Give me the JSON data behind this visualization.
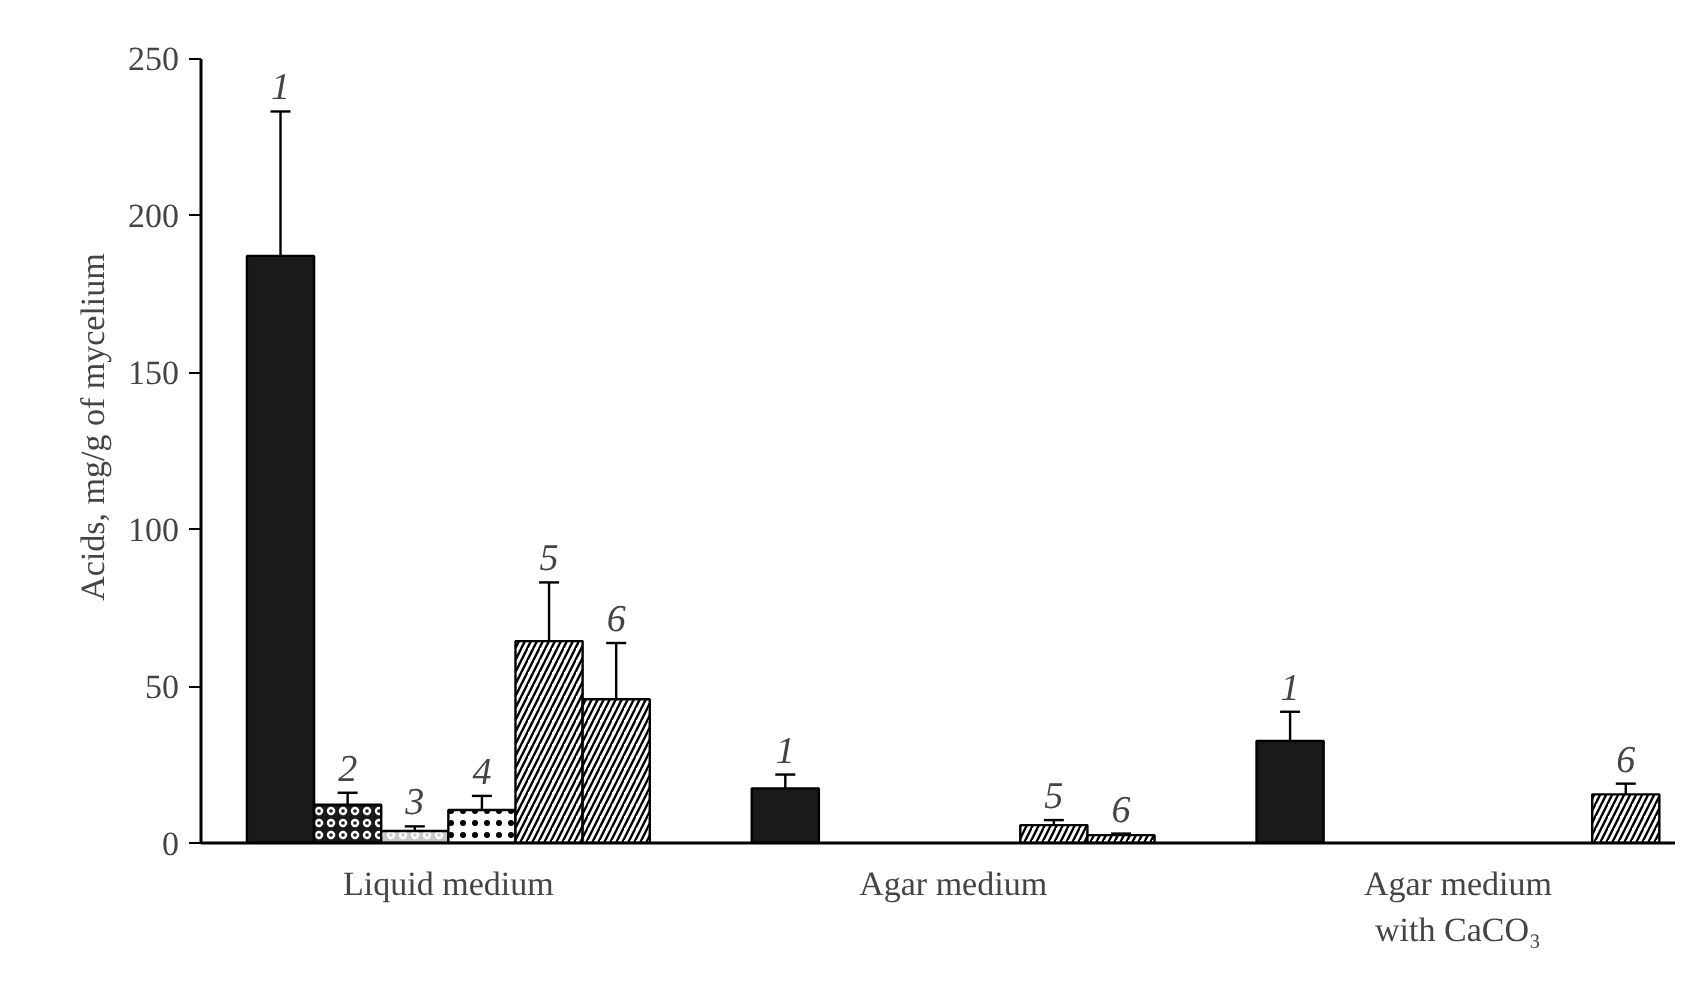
{
  "chart_data": {
    "type": "bar",
    "ylabel": "Acids, mg/g of mycelium",
    "categories": [
      "Liquid medium",
      "Agar medium",
      "Agar medium with CaCO₃"
    ],
    "series": [
      {
        "name": "1",
        "color": "#1a1a1a",
        "values": [
          187,
          17.4,
          32.5
        ],
        "errors": [
          46,
          4.4,
          9.3
        ]
      },
      {
        "name": "2",
        "color": "#1a1a1a",
        "values": [
          12.2,
          null,
          null
        ],
        "errors": [
          3.8,
          null,
          null
        ]
      },
      {
        "name": "3",
        "color": "#c8c8c8",
        "values": [
          3.8,
          null,
          null
        ],
        "errors": [
          1.5,
          null,
          null
        ]
      },
      {
        "name": "4",
        "color": "#ffffff",
        "values": [
          10.5,
          null,
          null
        ],
        "errors": [
          4.5,
          null,
          null
        ]
      },
      {
        "name": "5",
        "color": "#ffffff",
        "values": [
          64.3,
          5.7,
          null
        ],
        "errors": [
          18.7,
          1.6,
          null
        ]
      },
      {
        "name": "6",
        "color": "#ffffff",
        "values": [
          45.8,
          2.5,
          15.5
        ],
        "errors": [
          17.9,
          0.5,
          3.4
        ]
      }
    ],
    "ylim": [
      0,
      250
    ],
    "yticks": [
      0,
      50,
      100,
      150,
      200,
      250
    ],
    "grid": false
  }
}
